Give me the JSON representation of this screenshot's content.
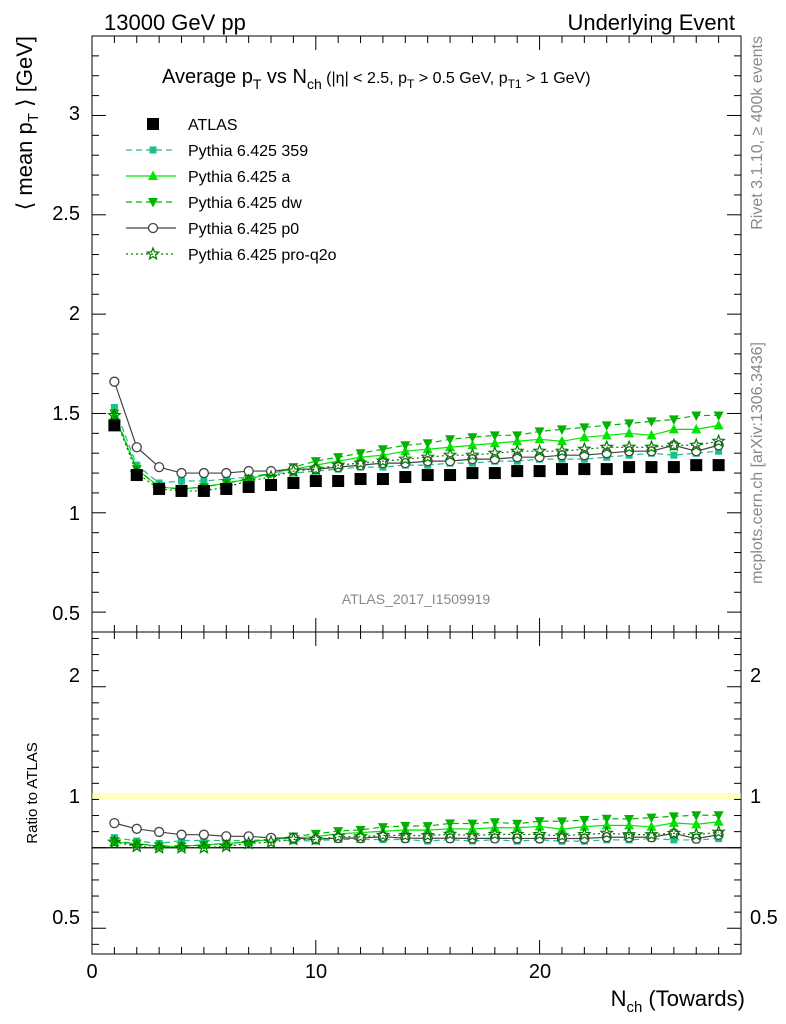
{
  "header": {
    "left": "13000 GeV pp",
    "right": "Underlying Event"
  },
  "side_labels": {
    "rivet": "Rivet 3.1.10, ≥ 400k events",
    "mcplots": "mcplots.cern.ch [arXiv:1306.3436]"
  },
  "analysis_id": "ATLAS_2017_I1509919",
  "chart_data": {
    "type": "scatter",
    "title": {
      "main": "Average p",
      "main_sub": "T",
      "vs": " vs N",
      "vs_sub": "ch",
      "cuts_a": " (|η| < 2.5, p",
      "cuts_a_sub": "T",
      "cuts_b": " > 0.5 GeV, p",
      "cuts_b_sub": "T1",
      "cuts_c": " > 1 GeV)"
    },
    "ylabel": {
      "a": "⟨ mean p",
      "sub": "T",
      "b": " ⟩ [GeV]"
    },
    "xlabel": {
      "a": "N",
      "sub": "ch",
      "b": " (Towards)"
    },
    "ratio_ylabel": "Ratio to ATLAS",
    "xlim": [
      0,
      29
    ],
    "ylim": [
      0.4,
      3.4
    ],
    "ratio_ylim": [
      0.34,
      2.34
    ],
    "main_yticks": [
      "0.5",
      "1",
      "1.5",
      "2",
      "2.5",
      "3"
    ],
    "ratio_yticks": [
      "0.5",
      "1",
      "2"
    ],
    "xticks": [
      "0",
      "10",
      "20"
    ],
    "x": [
      1,
      2,
      3,
      4,
      5,
      6,
      7,
      8,
      9,
      10,
      11,
      12,
      13,
      14,
      15,
      16,
      17,
      18,
      19,
      20,
      21,
      22,
      23,
      24,
      25,
      26,
      27,
      28
    ],
    "series": [
      {
        "name": "ATLAS",
        "marker": "square",
        "color": "#000000",
        "line": "none",
        "values": [
          1.44,
          1.19,
          1.12,
          1.11,
          1.11,
          1.12,
          1.13,
          1.14,
          1.15,
          1.16,
          1.16,
          1.17,
          1.17,
          1.18,
          1.19,
          1.19,
          1.2,
          1.2,
          1.21,
          1.21,
          1.22,
          1.22,
          1.22,
          1.23,
          1.23,
          1.23,
          1.24,
          1.24
        ]
      },
      {
        "name": "Pythia 6.425 359",
        "marker": "smallsquare",
        "color": "#19bf8c",
        "line": "dashed",
        "values": [
          1.53,
          1.24,
          1.15,
          1.16,
          1.16,
          1.17,
          1.18,
          1.2,
          1.2,
          1.21,
          1.22,
          1.23,
          1.23,
          1.24,
          1.24,
          1.25,
          1.25,
          1.26,
          1.26,
          1.27,
          1.27,
          1.27,
          1.28,
          1.29,
          1.3,
          1.29,
          1.3,
          1.31
        ]
      },
      {
        "name": "Pythia 6.425 a",
        "marker": "triangle-up",
        "color": "#00e600",
        "line": "solid",
        "values": [
          1.49,
          1.22,
          1.13,
          1.12,
          1.13,
          1.15,
          1.17,
          1.2,
          1.22,
          1.24,
          1.26,
          1.28,
          1.29,
          1.31,
          1.32,
          1.33,
          1.34,
          1.35,
          1.36,
          1.37,
          1.36,
          1.38,
          1.39,
          1.4,
          1.39,
          1.42,
          1.42,
          1.44
        ]
      },
      {
        "name": "Pythia 6.425 dw",
        "marker": "triangle-down",
        "color": "#00b300",
        "line": "dashed",
        "values": [
          1.5,
          1.22,
          1.13,
          1.12,
          1.13,
          1.15,
          1.17,
          1.2,
          1.23,
          1.26,
          1.28,
          1.3,
          1.32,
          1.34,
          1.35,
          1.37,
          1.38,
          1.39,
          1.39,
          1.41,
          1.42,
          1.43,
          1.44,
          1.45,
          1.46,
          1.47,
          1.49,
          1.49
        ]
      },
      {
        "name": "Pythia 6.425 p0",
        "marker": "circle-open",
        "color": "#444444",
        "line": "solid",
        "values": [
          1.66,
          1.33,
          1.23,
          1.2,
          1.2,
          1.2,
          1.21,
          1.21,
          1.22,
          1.22,
          1.23,
          1.24,
          1.25,
          1.25,
          1.26,
          1.26,
          1.27,
          1.27,
          1.28,
          1.28,
          1.29,
          1.29,
          1.3,
          1.31,
          1.31,
          1.34,
          1.31,
          1.34
        ]
      },
      {
        "name": "Pythia 6.425 pro-q2o",
        "marker": "star-open",
        "color": "#007a00",
        "line": "dotted",
        "values": [
          1.49,
          1.2,
          1.12,
          1.11,
          1.11,
          1.13,
          1.16,
          1.18,
          1.21,
          1.22,
          1.24,
          1.25,
          1.26,
          1.27,
          1.28,
          1.29,
          1.29,
          1.3,
          1.31,
          1.31,
          1.31,
          1.32,
          1.33,
          1.33,
          1.33,
          1.34,
          1.34,
          1.36
        ]
      }
    ],
    "legend_position": "top-left",
    "grid": false
  }
}
